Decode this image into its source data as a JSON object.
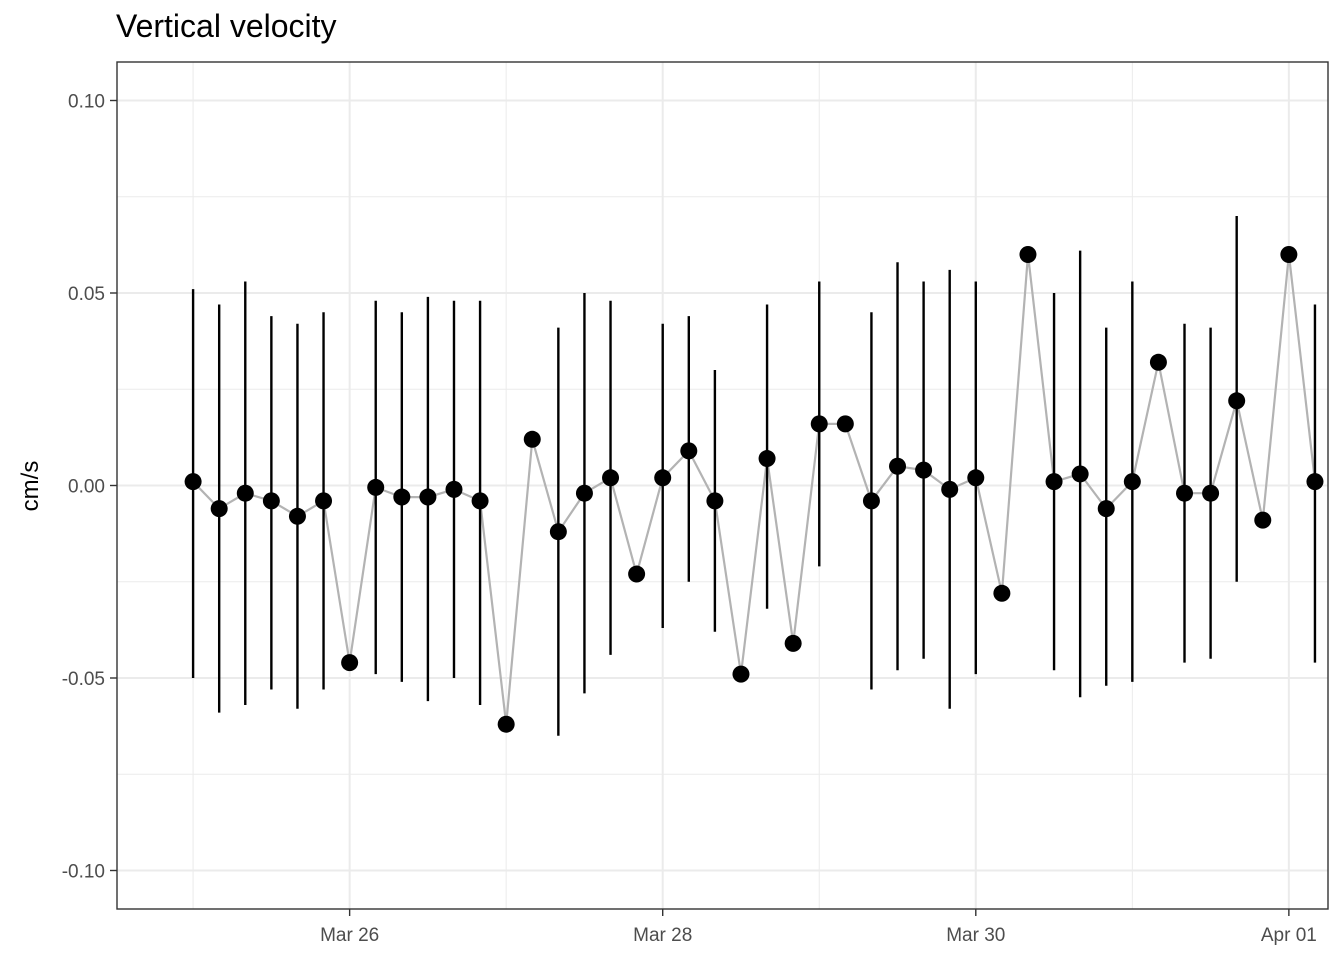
{
  "chart_data": {
    "type": "scatter",
    "title": "Vertical velocity",
    "xlabel": "",
    "ylabel": "cm/s",
    "x_axis_type": "date",
    "xlim": [
      "2020-03-24T12:20",
      "2020-04-01T06:00"
    ],
    "ylim": [
      -0.11,
      0.11
    ],
    "x_ticks": [
      "2020-03-26T00:00",
      "2020-03-28T00:00",
      "2020-03-30T00:00",
      "2020-04-01T00:00"
    ],
    "x_tick_labels": [
      "Mar 26",
      "Mar 28",
      "Mar 30",
      "Apr 01"
    ],
    "y_ticks": [
      0.1,
      0.05,
      0.0,
      -0.05,
      -0.1
    ],
    "y_tick_labels": [
      "0.10",
      "0.05",
      "0.00",
      "-0.05",
      "-0.10"
    ],
    "grid": true,
    "connecting_line": true,
    "colors": {
      "points": "#000000",
      "line": "#b3b3b3",
      "errorbars": "#000000",
      "grid": "#ebebeb",
      "border": "#333333"
    },
    "points": [
      {
        "x": "2020-03-25T00:00",
        "y": 0.001,
        "lo": -0.05,
        "hi": 0.051
      },
      {
        "x": "2020-03-25T04:00",
        "y": -0.006,
        "lo": -0.059,
        "hi": 0.047
      },
      {
        "x": "2020-03-25T08:00",
        "y": -0.002,
        "lo": -0.057,
        "hi": 0.053
      },
      {
        "x": "2020-03-25T12:00",
        "y": -0.004,
        "lo": -0.053,
        "hi": 0.044
      },
      {
        "x": "2020-03-25T16:00",
        "y": -0.008,
        "lo": -0.058,
        "hi": 0.042
      },
      {
        "x": "2020-03-25T20:00",
        "y": -0.004,
        "lo": -0.053,
        "hi": 0.045
      },
      {
        "x": "2020-03-26T00:00",
        "y": -0.046
      },
      {
        "x": "2020-03-26T04:00",
        "y": -0.0005,
        "lo": -0.049,
        "hi": 0.048
      },
      {
        "x": "2020-03-26T08:00",
        "y": -0.003,
        "lo": -0.051,
        "hi": 0.045
      },
      {
        "x": "2020-03-26T12:00",
        "y": -0.003,
        "lo": -0.056,
        "hi": 0.049
      },
      {
        "x": "2020-03-26T16:00",
        "y": -0.001,
        "lo": -0.05,
        "hi": 0.048
      },
      {
        "x": "2020-03-26T20:00",
        "y": -0.004,
        "lo": -0.057,
        "hi": 0.048
      },
      {
        "x": "2020-03-27T00:00",
        "y": -0.062
      },
      {
        "x": "2020-03-27T04:00",
        "y": 0.012
      },
      {
        "x": "2020-03-27T08:00",
        "y": -0.012,
        "lo": -0.065,
        "hi": 0.041
      },
      {
        "x": "2020-03-27T12:00",
        "y": -0.002,
        "lo": -0.054,
        "hi": 0.05
      },
      {
        "x": "2020-03-27T16:00",
        "y": 0.002,
        "lo": -0.044,
        "hi": 0.048
      },
      {
        "x": "2020-03-27T20:00",
        "y": -0.023
      },
      {
        "x": "2020-03-28T00:00",
        "y": 0.002,
        "lo": -0.037,
        "hi": 0.042
      },
      {
        "x": "2020-03-28T04:00",
        "y": 0.009,
        "lo": -0.025,
        "hi": 0.044
      },
      {
        "x": "2020-03-28T08:00",
        "y": -0.004,
        "lo": -0.038,
        "hi": 0.03
      },
      {
        "x": "2020-03-28T12:00",
        "y": -0.049
      },
      {
        "x": "2020-03-28T16:00",
        "y": 0.007,
        "lo": -0.032,
        "hi": 0.047
      },
      {
        "x": "2020-03-28T20:00",
        "y": -0.041
      },
      {
        "x": "2020-03-29T00:00",
        "y": 0.016,
        "lo": -0.021,
        "hi": 0.053
      },
      {
        "x": "2020-03-29T04:00",
        "y": 0.016
      },
      {
        "x": "2020-03-29T08:00",
        "y": -0.004,
        "lo": -0.053,
        "hi": 0.045
      },
      {
        "x": "2020-03-29T12:00",
        "y": 0.005,
        "lo": -0.048,
        "hi": 0.058
      },
      {
        "x": "2020-03-29T16:00",
        "y": 0.004,
        "lo": -0.045,
        "hi": 0.053
      },
      {
        "x": "2020-03-29T20:00",
        "y": -0.001,
        "lo": -0.058,
        "hi": 0.056
      },
      {
        "x": "2020-03-30T00:00",
        "y": 0.002,
        "lo": -0.049,
        "hi": 0.053
      },
      {
        "x": "2020-03-30T04:00",
        "y": -0.028
      },
      {
        "x": "2020-03-30T08:00",
        "y": 0.06
      },
      {
        "x": "2020-03-30T12:00",
        "y": 0.001,
        "lo": -0.048,
        "hi": 0.05
      },
      {
        "x": "2020-03-30T16:00",
        "y": 0.003,
        "lo": -0.055,
        "hi": 0.061
      },
      {
        "x": "2020-03-30T20:00",
        "y": -0.006,
        "lo": -0.052,
        "hi": 0.041
      },
      {
        "x": "2020-03-31T00:00",
        "y": 0.001,
        "lo": -0.051,
        "hi": 0.053
      },
      {
        "x": "2020-03-31T04:00",
        "y": 0.032
      },
      {
        "x": "2020-03-31T08:00",
        "y": -0.002,
        "lo": -0.046,
        "hi": 0.042
      },
      {
        "x": "2020-03-31T12:00",
        "y": -0.002,
        "lo": -0.045,
        "hi": 0.041
      },
      {
        "x": "2020-03-31T16:00",
        "y": 0.022,
        "lo": -0.025,
        "hi": 0.07
      },
      {
        "x": "2020-03-31T20:00",
        "y": -0.009
      },
      {
        "x": "2020-04-01T00:00",
        "y": 0.06
      },
      {
        "x": "2020-04-01T04:00",
        "y": 0.001,
        "lo": -0.046,
        "hi": 0.047
      }
    ]
  }
}
